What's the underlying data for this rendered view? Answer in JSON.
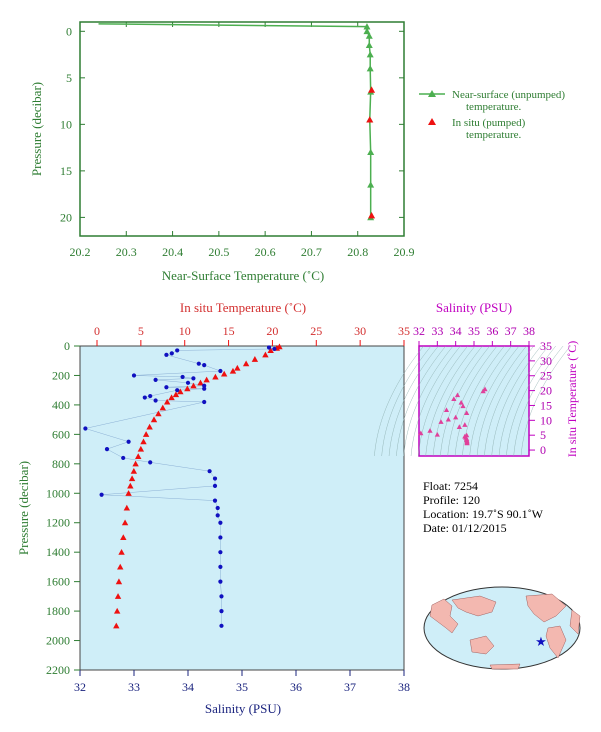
{
  "colors": {
    "green": "#2e7d32",
    "line_green": "#4caf50",
    "red": "#ee1111",
    "blue": "#1010c0",
    "magenta": "#c000c0",
    "panel_bg": "#cfeef8"
  },
  "chart_data": [
    {
      "type": "line",
      "xlabel": "Near-Surface Temperature (˚C)",
      "ylabel": "Pressure (decibar)",
      "xlim": [
        20.2,
        20.9
      ],
      "ylim": [
        22,
        -1
      ],
      "x_ticks": [
        "20.2",
        "20.3",
        "20.4",
        "20.5",
        "20.6",
        "20.7",
        "20.8",
        "20.9"
      ],
      "y_ticks": [
        "0",
        "5",
        "10",
        "15",
        "20"
      ],
      "legend": {
        "unpumped": [
          "Near-surface (unpumped)",
          "temperature."
        ],
        "pumped": [
          "In situ (pumped)",
          "temperature."
        ]
      },
      "series": [
        {
          "name": "Near-surface (unpumped) temperature.",
          "points": [
            [
              20.24,
              -0.8
            ],
            [
              20.82,
              -0.5
            ],
            [
              20.82,
              0
            ],
            [
              20.825,
              0.5
            ],
            [
              20.825,
              1.5
            ],
            [
              20.827,
              2.5
            ],
            [
              20.827,
              4
            ],
            [
              20.828,
              6.5
            ],
            [
              20.826,
              9.5
            ],
            [
              20.828,
              13
            ],
            [
              20.828,
              16.5
            ],
            [
              20.828,
              20
            ]
          ]
        },
        {
          "name": "In situ (pumped) temperature.",
          "points": [
            [
              20.83,
              6.3
            ],
            [
              20.826,
              9.5
            ],
            [
              20.83,
              19.8
            ]
          ]
        }
      ]
    },
    {
      "type": "scatter",
      "ylabel": "Pressure (decibar)",
      "top_xlabel": "In situ Temperature (˚C)",
      "bottom_xlabel": "Salinity (PSU)",
      "temp_ticks": [
        "0",
        "5",
        "10",
        "15",
        "20",
        "25",
        "30",
        "35"
      ],
      "sal_ticks": [
        "32",
        "33",
        "34",
        "35",
        "36",
        "37",
        "38"
      ],
      "p_ticks": [
        "0",
        "200",
        "400",
        "600",
        "800",
        "1000",
        "1200",
        "1400",
        "1600",
        "1800",
        "2000",
        "2200"
      ],
      "temperature_series": {
        "name": "In situ Temperature",
        "points": [
          [
            20.8,
            5
          ],
          [
            20.5,
            15
          ],
          [
            19.8,
            30
          ],
          [
            19.2,
            60
          ],
          [
            18.0,
            90
          ],
          [
            17.0,
            120
          ],
          [
            16.0,
            150
          ],
          [
            15.5,
            170
          ],
          [
            14.5,
            190
          ],
          [
            13.5,
            210
          ],
          [
            12.5,
            230
          ],
          [
            11.8,
            250
          ],
          [
            11.0,
            270
          ],
          [
            10.3,
            290
          ],
          [
            9.5,
            310
          ],
          [
            9.0,
            330
          ],
          [
            8.5,
            350
          ],
          [
            8.0,
            380
          ],
          [
            7.5,
            420
          ],
          [
            7.0,
            460
          ],
          [
            6.5,
            500
          ],
          [
            6.0,
            550
          ],
          [
            5.6,
            600
          ],
          [
            5.3,
            650
          ],
          [
            5.0,
            700
          ],
          [
            4.7,
            750
          ],
          [
            4.4,
            800
          ],
          [
            4.2,
            850
          ],
          [
            4.0,
            900
          ],
          [
            3.8,
            950
          ],
          [
            3.6,
            1000
          ],
          [
            3.4,
            1100
          ],
          [
            3.2,
            1200
          ],
          [
            3.0,
            1300
          ],
          [
            2.8,
            1400
          ],
          [
            2.65,
            1500
          ],
          [
            2.5,
            1600
          ],
          [
            2.4,
            1700
          ],
          [
            2.3,
            1800
          ],
          [
            2.2,
            1900
          ]
        ]
      },
      "salinity_series": {
        "name": "Salinity",
        "points": [
          [
            35.5,
            10
          ],
          [
            35.6,
            20
          ],
          [
            33.8,
            30
          ],
          [
            33.7,
            50
          ],
          [
            33.6,
            60
          ],
          [
            34.2,
            120
          ],
          [
            34.3,
            130
          ],
          [
            34.6,
            170
          ],
          [
            33.0,
            200
          ],
          [
            33.9,
            210
          ],
          [
            34.1,
            220
          ],
          [
            33.4,
            230
          ],
          [
            34.0,
            250
          ],
          [
            34.3,
            270
          ],
          [
            33.6,
            280
          ],
          [
            34.3,
            290
          ],
          [
            33.8,
            300
          ],
          [
            33.3,
            340
          ],
          [
            33.2,
            350
          ],
          [
            33.4,
            370
          ],
          [
            34.3,
            380
          ],
          [
            32.1,
            560
          ],
          [
            32.9,
            650
          ],
          [
            32.5,
            700
          ],
          [
            32.8,
            760
          ],
          [
            33.3,
            790
          ],
          [
            34.4,
            850
          ],
          [
            34.5,
            900
          ],
          [
            34.5,
            950
          ],
          [
            32.4,
            1010
          ],
          [
            34.5,
            1050
          ],
          [
            34.55,
            1100
          ],
          [
            34.55,
            1150
          ],
          [
            34.6,
            1200
          ],
          [
            34.6,
            1300
          ],
          [
            34.6,
            1400
          ],
          [
            34.6,
            1500
          ],
          [
            34.6,
            1600
          ],
          [
            34.62,
            1700
          ],
          [
            34.62,
            1800
          ],
          [
            34.62,
            1900
          ]
        ]
      }
    },
    {
      "type": "scatter",
      "title": "Salinity (PSU)",
      "ylabel": "In situ Temperature (˚C)",
      "xlim": [
        32,
        38
      ],
      "ylim": [
        -2,
        35
      ],
      "x_ticks": [
        "32",
        "33",
        "34",
        "35",
        "36",
        "37",
        "38"
      ],
      "y_ticks": [
        "0",
        "5",
        "10",
        "15",
        "20",
        "25",
        "30",
        "35"
      ],
      "points": [
        [
          35.6,
          20.5
        ],
        [
          35.5,
          19.8
        ],
        [
          34.1,
          18.5
        ],
        [
          33.9,
          17.2
        ],
        [
          34.3,
          16.0
        ],
        [
          34.4,
          14.8
        ],
        [
          33.5,
          13.5
        ],
        [
          34.6,
          12.5
        ],
        [
          34.0,
          11.0
        ],
        [
          33.6,
          10.3
        ],
        [
          33.2,
          9.5
        ],
        [
          34.5,
          8.5
        ],
        [
          34.2,
          7.8
        ],
        [
          32.6,
          6.5
        ],
        [
          32.1,
          5.7
        ],
        [
          33.0,
          5.2
        ],
        [
          34.6,
          5.0
        ],
        [
          34.5,
          4.6
        ],
        [
          34.55,
          4.2
        ],
        [
          34.6,
          3.8
        ],
        [
          34.6,
          3.4
        ],
        [
          34.62,
          3.0
        ],
        [
          34.62,
          2.6
        ],
        [
          34.62,
          2.3
        ]
      ]
    }
  ],
  "info": {
    "float_line": "Float:  7254",
    "profile_line": "Profile:  120",
    "location_line": "Location:  19.7˚S  90.1˚W",
    "date_line": "Date:  01/12/2015"
  }
}
